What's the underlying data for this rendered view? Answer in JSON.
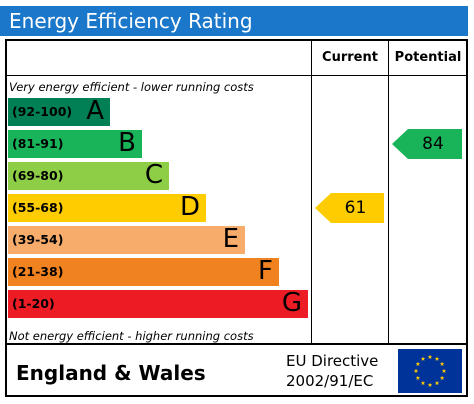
{
  "title": "Energy Efficiency Rating",
  "columns": {
    "current": "Current",
    "potential": "Potential"
  },
  "captions": {
    "top": "Very energy efficient - lower running costs",
    "bottom": "Not energy efficient - higher running costs"
  },
  "chart_data": {
    "type": "bar",
    "title": "Energy Efficiency Rating",
    "categories": [
      "A",
      "B",
      "C",
      "D",
      "E",
      "F",
      "G"
    ],
    "bands": [
      {
        "letter": "A",
        "range": "(92-100)",
        "color": "#008054"
      },
      {
        "letter": "B",
        "range": "(81-91)",
        "color": "#19b459"
      },
      {
        "letter": "C",
        "range": "(69-80)",
        "color": "#8dce46"
      },
      {
        "letter": "D",
        "range": "(55-68)",
        "color": "#ffcc00"
      },
      {
        "letter": "E",
        "range": "(39-54)",
        "color": "#f7ac6c"
      },
      {
        "letter": "F",
        "range": "(21-38)",
        "color": "#f08220"
      },
      {
        "letter": "G",
        "range": "(1-20)",
        "color": "#ed1c24"
      }
    ],
    "current": {
      "value": 61,
      "label": "61",
      "band": "D",
      "color": "#ffcc00"
    },
    "potential": {
      "value": 84,
      "label": "84",
      "band": "B",
      "color": "#19b459"
    }
  },
  "footer": {
    "region": "England & Wales",
    "directive_line1": "EU Directive",
    "directive_line2": "2002/91/EC",
    "flag": "eu-flag-icon",
    "flag_color": "#003399",
    "star_color": "#ffcc00"
  }
}
